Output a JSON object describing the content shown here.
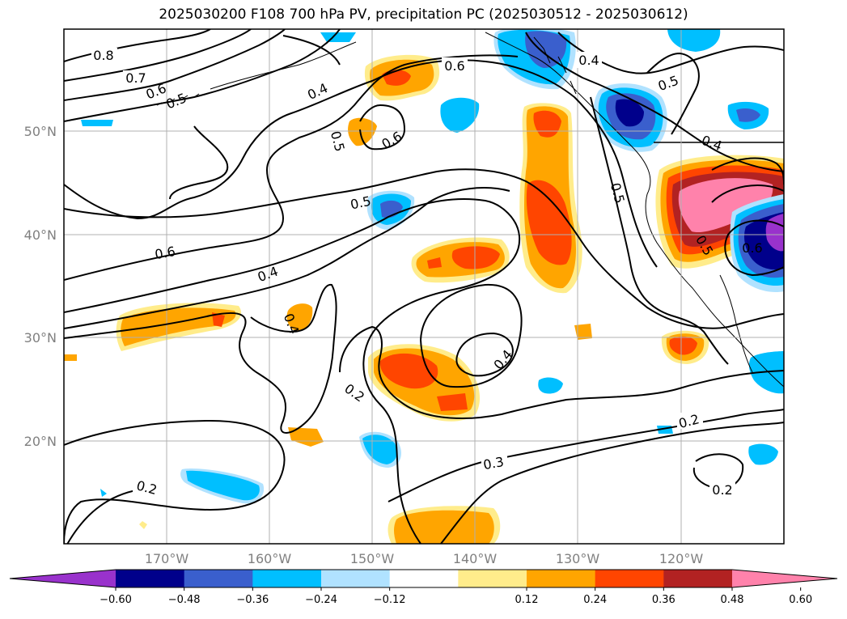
{
  "title": "2025030200 F108 700 hPa PV, precipitation PC (2025030512 - 2025030612)",
  "lat_labels": [
    "50°N",
    "40°N",
    "30°N",
    "20°N"
  ],
  "lon_labels": [
    "170°W",
    "160°W",
    "150°W",
    "140°W",
    "130°W",
    "120°W"
  ],
  "contour_labels": [
    "0.8",
    "0.7",
    "0.6",
    "0.5",
    "0.4",
    "0.6",
    "0.4",
    "0.5",
    "0.5",
    "0.6",
    "0.6",
    "0.5",
    "0.4",
    "0.5",
    "0.4",
    "0.4",
    "0.2",
    "0.4",
    "0.6",
    "0.5",
    "0.2",
    "0.3",
    "0.2",
    "0.2"
  ],
  "colorbar": {
    "ticks": [
      "−0.60",
      "−0.48",
      "−0.36",
      "−0.24",
      "−0.12",
      "0.12",
      "0.24",
      "0.36",
      "0.48",
      "0.60"
    ],
    "colors": [
      "#9932CC",
      "#00008B",
      "#3A5FCD",
      "#00BFFF",
      "#B0E2FF",
      "#FFFFFF",
      "#FFEC8B",
      "#FFA500",
      "#FF4500",
      "#B22222",
      "#FF82AB"
    ]
  }
}
